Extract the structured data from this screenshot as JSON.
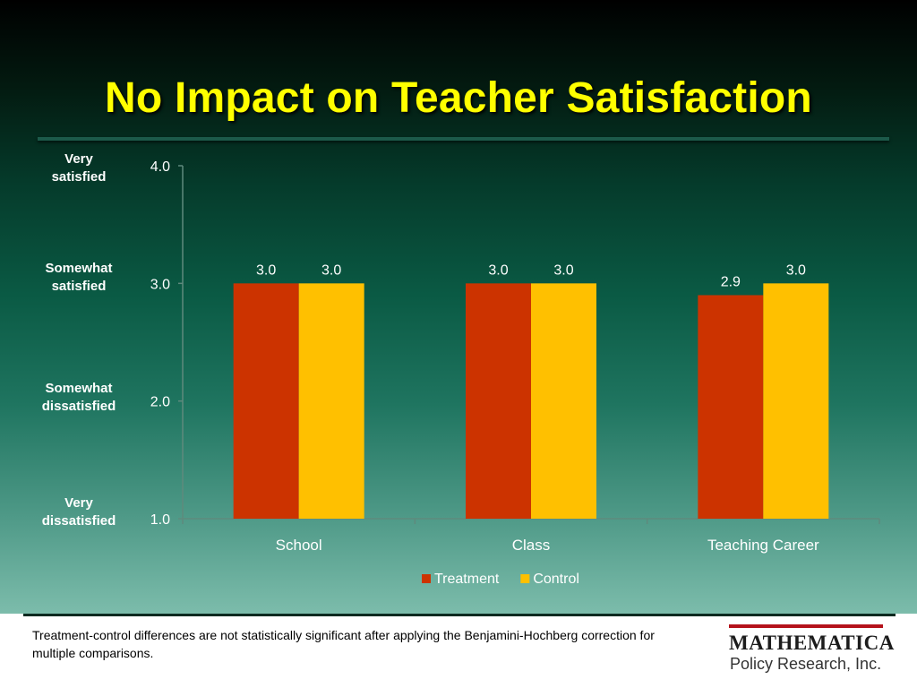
{
  "slide": {
    "title": "No Impact on Teacher Satisfaction",
    "scale_labels": [
      {
        "line1": "Very",
        "line2": "satisfied",
        "value": 4.0
      },
      {
        "line1": "Somewhat",
        "line2": "satisfied",
        "value": 3.0
      },
      {
        "line1": "Somewhat",
        "line2": "dissatisfied",
        "value": 2.0
      },
      {
        "line1": "Very",
        "line2": "dissatisfied",
        "value": 1.0
      }
    ],
    "footnote": "Treatment-control differences are not statistically significant  after applying the Benjamini-Hochberg correction for multiple comparisons.",
    "logo": {
      "name": "MATHEMATICA",
      "subtitle": "Policy Research, Inc."
    }
  },
  "chart_data": {
    "type": "bar",
    "categories": [
      "School",
      "Class",
      "Teaching Career"
    ],
    "series": [
      {
        "name": "Treatment",
        "values": [
          3.0,
          3.0,
          2.9
        ],
        "labels": [
          "3.0",
          "3.0",
          "2.9"
        ],
        "color": "#cc3300"
      },
      {
        "name": "Control",
        "values": [
          3.0,
          3.0,
          3.0
        ],
        "labels": [
          "3.0",
          "3.0",
          "3.0"
        ],
        "color": "#ffc000"
      }
    ],
    "ylim": [
      1.0,
      4.0
    ],
    "yticks": [
      "4.0",
      "3.0",
      "2.0",
      "1.0"
    ],
    "legend_position": "bottom",
    "grid": false,
    "axis_color": "#5f8a7d",
    "text_color": "#ffffff"
  }
}
